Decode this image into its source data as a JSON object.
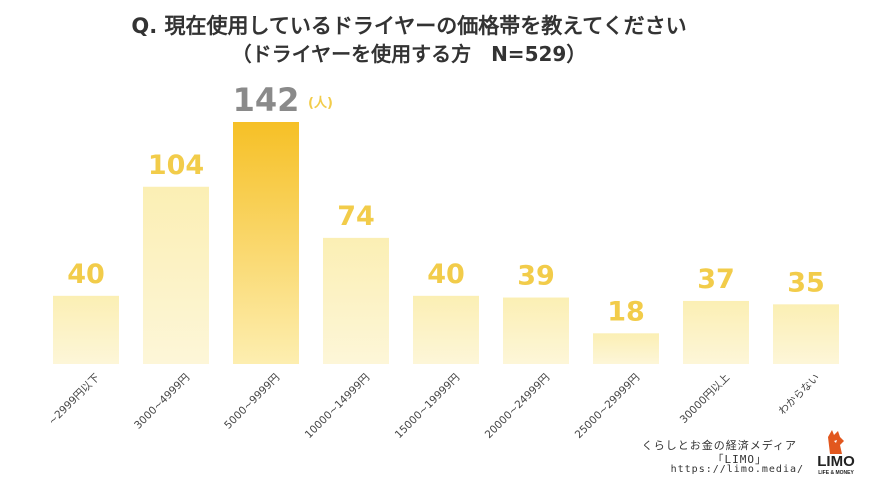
{
  "chart_data": {
    "type": "bar",
    "title": "Q. 現在使用しているドライヤーの価格帯を教えてください",
    "subtitle": "（ドライヤーを使用する方　N=529）",
    "categories": [
      "~2999円以下",
      "3000~4999円",
      "5000~9999円",
      "10000~14999円",
      "15000~19999円",
      "20000~24999円",
      "25000~29999円",
      "30000円以上",
      "わからない"
    ],
    "values": [
      40,
      104,
      142,
      74,
      40,
      39,
      18,
      37,
      35
    ],
    "unit": "(人)",
    "highlight_index": 2,
    "ylim": [
      0,
      142
    ],
    "colors": {
      "bar": "#fbefb4",
      "bar_bottom": "#fdf6d8",
      "highlight_top": "#f6c026",
      "highlight_bottom": "#fdeeb0",
      "label": "#f2cc4a",
      "highlight_label": "#8a8a8a"
    }
  },
  "footer": {
    "line1": "くらしとお金の経済メディア",
    "line2": "「LIMO」",
    "url": "https://limo.media/",
    "logo_text": "LIMO",
    "logo_sub": "LIFE & MONEY",
    "logo_icon": "fox-icon"
  }
}
